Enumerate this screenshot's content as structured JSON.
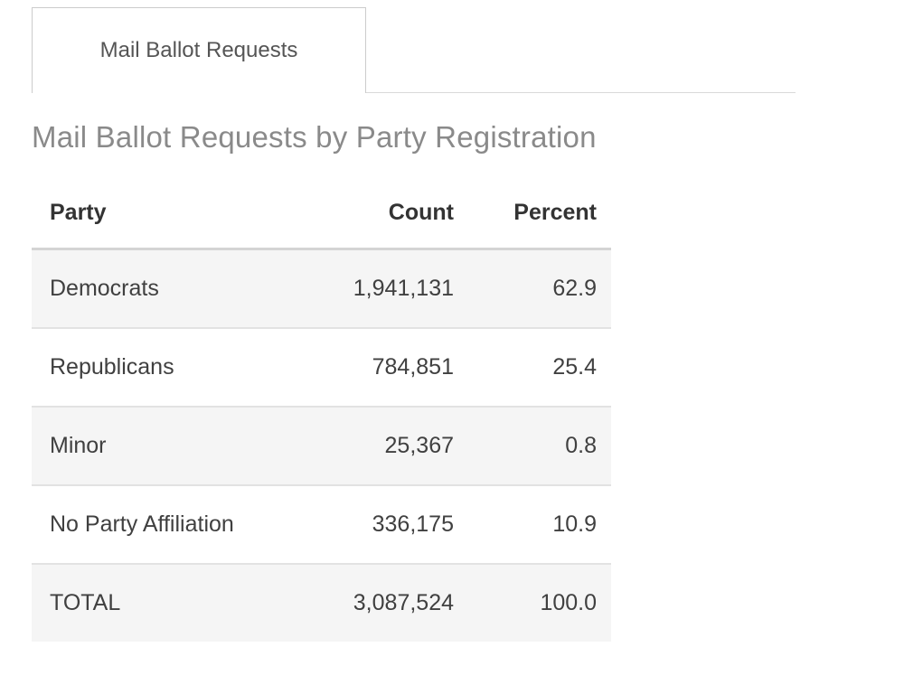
{
  "tabs": {
    "active_label": "Mail Ballot Requests"
  },
  "page": {
    "title": "Mail Ballot Requests by Party Registration"
  },
  "table": {
    "columns": [
      "Party",
      "Count",
      "Percent"
    ],
    "rows": [
      {
        "party": "Democrats",
        "count": "1,941,131",
        "percent": "62.9"
      },
      {
        "party": "Republicans",
        "count": "784,851",
        "percent": "25.4"
      },
      {
        "party": "Minor",
        "count": "25,367",
        "percent": "0.8"
      },
      {
        "party": "No Party Affiliation",
        "count": "336,175",
        "percent": "10.9"
      },
      {
        "party": "TOTAL",
        "count": "3,087,524",
        "percent": "100.0"
      }
    ]
  },
  "colors": {
    "tab_border": "#cccccc",
    "tab_text": "#555555",
    "heading_text": "#8a8a8a",
    "header_text": "#333333",
    "body_text": "#404040",
    "stripe_background": "#f5f5f5",
    "row_divider": "#e2e2e2",
    "header_divider": "#d4d4d4"
  }
}
